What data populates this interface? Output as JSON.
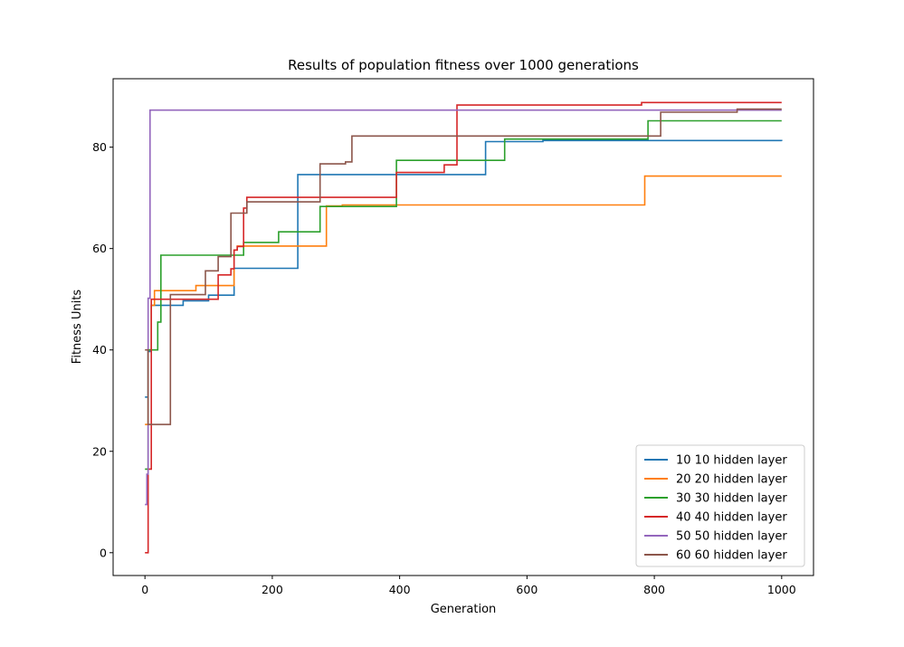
{
  "chart_data": {
    "type": "line",
    "title": "Results of population fitness over 1000 generations",
    "xlabel": "Generation",
    "ylabel": "Fitness Units",
    "xlim": [
      -50,
      1050
    ],
    "ylim": [
      -4.5,
      93.5
    ],
    "xticks": [
      0,
      200,
      400,
      600,
      800,
      1000
    ],
    "yticks": [
      0,
      20,
      40,
      60,
      80
    ],
    "legend_position": "lower-right",
    "grid": false,
    "series": [
      {
        "name": "10 10 hidden layer",
        "color": "#1f77b4",
        "x": [
          0,
          5,
          10,
          30,
          60,
          100,
          140,
          240,
          395,
          535,
          625,
          1000
        ],
        "y": [
          30.7,
          39.7,
          48.8,
          48.8,
          49.7,
          50.8,
          56.1,
          74.6,
          74.6,
          81.1,
          81.3,
          81.2
        ]
      },
      {
        "name": "20 20 hidden layer",
        "color": "#ff7f0e",
        "x": [
          0,
          5,
          10,
          15,
          80,
          140,
          145,
          285,
          310,
          780,
          785,
          1000
        ],
        "y": [
          25.3,
          40.0,
          48.8,
          51.7,
          52.7,
          59.7,
          60.5,
          68.4,
          68.6,
          68.6,
          74.3,
          74.3
        ]
      },
      {
        "name": "30 30 hidden layer",
        "color": "#2ca02c",
        "x": [
          0,
          5,
          10,
          20,
          25,
          155,
          210,
          275,
          395,
          555,
          565,
          790,
          1000
        ],
        "y": [
          16.5,
          40.0,
          40.0,
          45.5,
          58.7,
          61.2,
          63.3,
          68.3,
          77.4,
          77.4,
          81.6,
          85.2,
          85.2
        ]
      },
      {
        "name": "40 40 hidden layer",
        "color": "#d62728",
        "x": [
          0,
          5,
          10,
          115,
          135,
          140,
          145,
          155,
          160,
          395,
          470,
          490,
          780,
          1000
        ],
        "y": [
          0,
          16.5,
          50.0,
          54.8,
          56.0,
          59.7,
          60.4,
          68.0,
          70.1,
          75.0,
          76.5,
          88.3,
          88.8,
          88.8
        ]
      },
      {
        "name": "50 50 hidden layer",
        "color": "#9467bd",
        "x": [
          0,
          3,
          5,
          8,
          1000
        ],
        "y": [
          9.5,
          15.5,
          50.2,
          87.3,
          87.3
        ]
      },
      {
        "name": "60 60 hidden layer",
        "color": "#8c564b",
        "x": [
          0,
          5,
          40,
          95,
          115,
          135,
          145,
          160,
          275,
          315,
          325,
          810,
          930,
          1000
        ],
        "y": [
          40.0,
          25.3,
          50.9,
          55.6,
          58.4,
          67.0,
          67.0,
          69.2,
          76.7,
          77.1,
          82.2,
          86.9,
          87.5,
          87.5
        ]
      }
    ]
  }
}
